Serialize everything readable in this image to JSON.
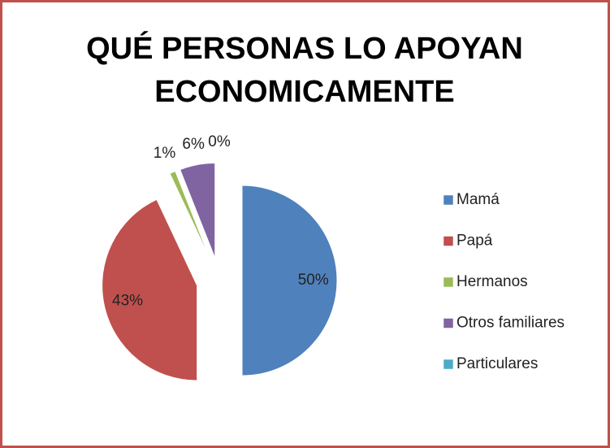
{
  "chart_data": {
    "type": "pie",
    "title": "QUÉ PERSONAS LO APOYAN ECONOMICAMENTE",
    "categories": [
      "Mamá",
      "Papá",
      "Hermanos",
      "Otros familiares",
      "Particulares"
    ],
    "values": [
      50,
      43,
      1,
      6,
      0
    ],
    "value_labels": [
      "50%",
      "43%",
      "1%",
      "6%",
      "0%"
    ],
    "colors": [
      "#4f81bd",
      "#c0504d",
      "#9bbb59",
      "#8064a2",
      "#4bacc6"
    ],
    "legend": "right"
  }
}
